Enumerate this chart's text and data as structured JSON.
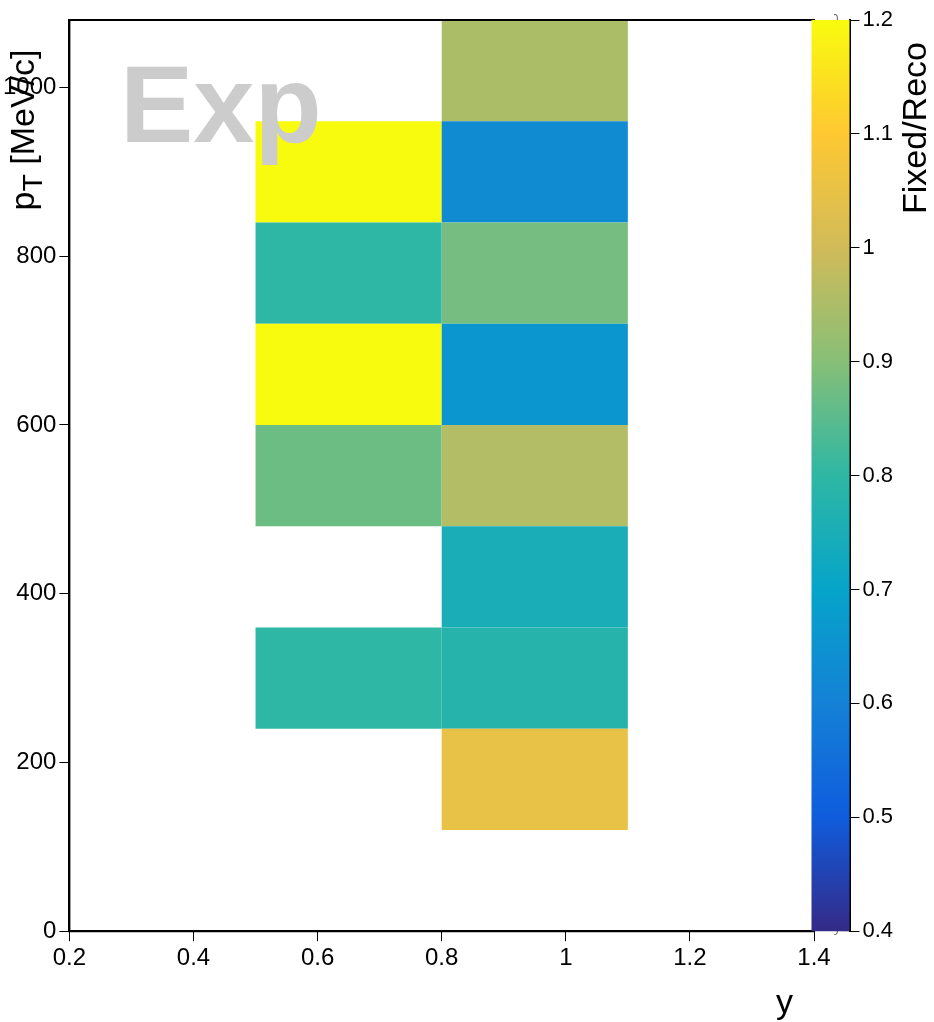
{
  "chart_data": {
    "type": "heatmap",
    "xlabel": "y",
    "ylabel": "p$_{T}$ [MeV/c]",
    "clabel": "Fixed/Reco",
    "annotations": [
      "Exp"
    ],
    "x": [
      0.65,
      0.95
    ],
    "y": [
      1020,
      900,
      780,
      660,
      540,
      420,
      300,
      180
    ],
    "cells": [
      [
        null,
        0.95
      ],
      [
        1.2,
        0.63
      ],
      [
        0.8,
        0.88
      ],
      [
        1.2,
        0.66
      ],
      [
        0.87,
        0.96
      ],
      [
        null,
        0.75
      ],
      [
        0.8,
        0.78
      ],
      [
        null,
        1.05
      ]
    ],
    "xlim": [
      0.2,
      1.4
    ],
    "xticks": [
      0.2,
      0.4,
      0.6,
      0.8,
      1,
      1.2,
      1.4
    ],
    "ylim": [
      0,
      1080
    ],
    "yticks": [
      0,
      200,
      400,
      600,
      800,
      1000
    ],
    "clim": [
      0.4,
      1.2
    ],
    "cticks": [
      0.4,
      0.5,
      0.6,
      0.7,
      0.8,
      0.9,
      1,
      1.1,
      1.2
    ],
    "grid": false
  }
}
